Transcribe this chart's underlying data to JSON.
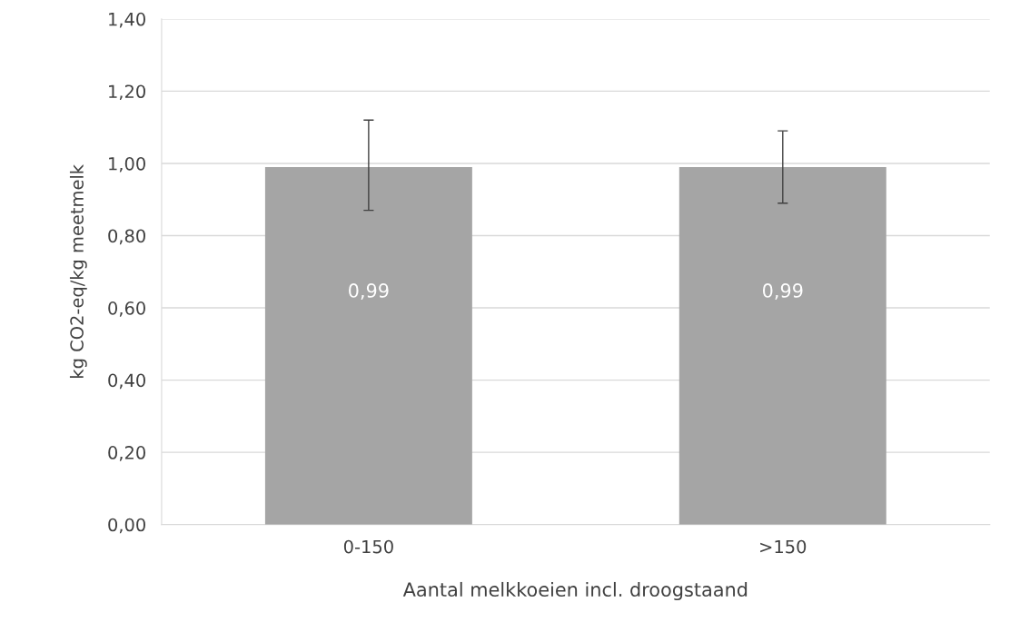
{
  "chart_data": {
    "type": "bar",
    "xlabel": "Aantal melkkoeien incl. droogstaand",
    "ylabel": "kg CO2-eq/kg meetmelk",
    "categories": [
      "0-150",
      ">150"
    ],
    "values": [
      0.99,
      0.99
    ],
    "color": "#a5a5a5",
    "errors": [
      [
        0.87,
        1.12
      ],
      [
        0.89,
        1.09
      ]
    ],
    "value_labels": [
      "0,99",
      "0,99"
    ],
    "ylim": [
      0,
      1.4
    ],
    "yticks": [
      {
        "value": 0,
        "label": "0,00"
      },
      {
        "value": 0.2,
        "label": "0,20"
      },
      {
        "value": 0.4,
        "label": "0,40"
      },
      {
        "value": 0.6,
        "label": "0,60"
      },
      {
        "value": 0.8,
        "label": "0,80"
      },
      {
        "value": 1.0,
        "label": "1,00"
      },
      {
        "value": 1.2,
        "label": "1,20"
      },
      {
        "value": 1.4,
        "label": "1,40"
      }
    ],
    "grid": "y",
    "legend": false
  }
}
